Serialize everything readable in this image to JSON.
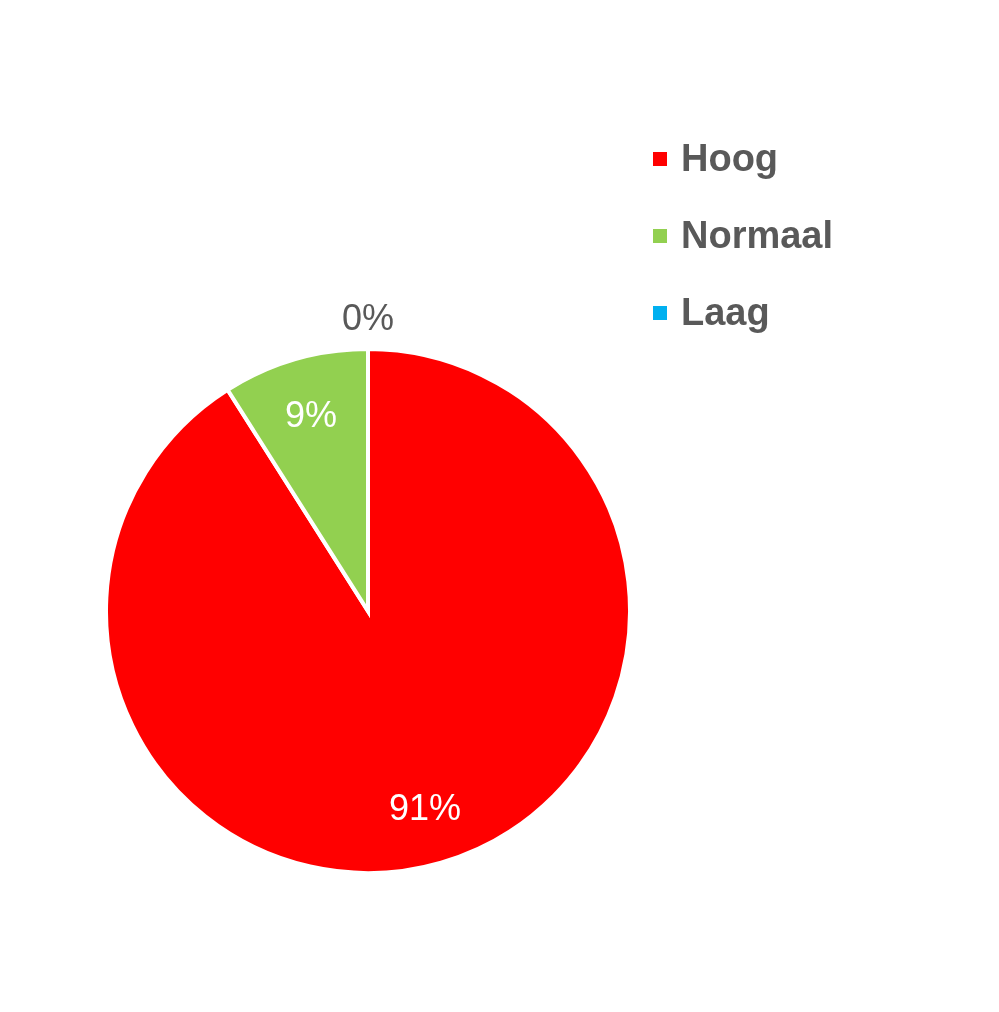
{
  "chart_data": {
    "type": "pie",
    "categories": [
      "Hoog",
      "Normaal",
      "Laag"
    ],
    "values": [
      91,
      9,
      0
    ],
    "colors": [
      "#ff0000",
      "#92d050",
      "#00b0f0"
    ],
    "value_labels": [
      "91%",
      "9%",
      "0%"
    ],
    "legend": "top right"
  }
}
